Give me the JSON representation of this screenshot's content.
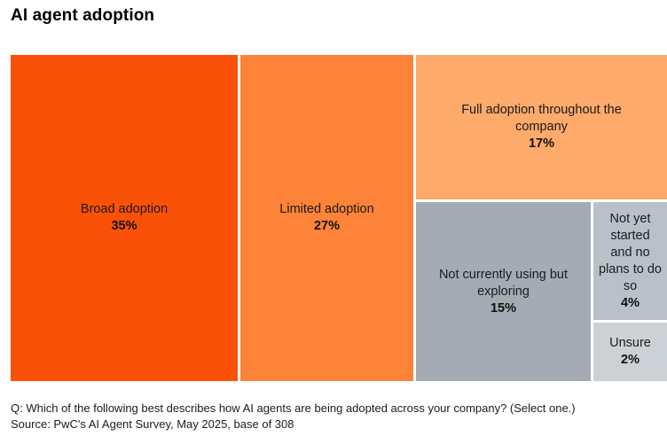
{
  "title": "AI agent adoption",
  "footer": {
    "question": "Q: Which of the following best describes how AI agents are being adopted across your company? (Select one.)",
    "source": "Source: PwC's AI Agent Survey, May 2025, base of 308"
  },
  "chart_data": {
    "type": "treemap",
    "title": "AI agent adoption",
    "unit": "%",
    "segments": [
      {
        "label": "Broad adoption",
        "value": 35,
        "pct": "35%",
        "color": "#fa5108"
      },
      {
        "label": "Limited adoption",
        "value": 27,
        "pct": "27%",
        "color": "#fd8338"
      },
      {
        "label": "Full adoption throughout the company",
        "value": 17,
        "pct": "17%",
        "color": "#fdaa6b"
      },
      {
        "label": "Not currently using but exploring",
        "value": 15,
        "pct": "15%",
        "color": "#a4abb4"
      },
      {
        "label": "Not yet started and no plans to do so",
        "value": 4,
        "pct": "4%",
        "color": "#b9c0c9"
      },
      {
        "label": "Unsure",
        "value": 2,
        "pct": "2%",
        "color": "#ccd1d5"
      }
    ]
  }
}
